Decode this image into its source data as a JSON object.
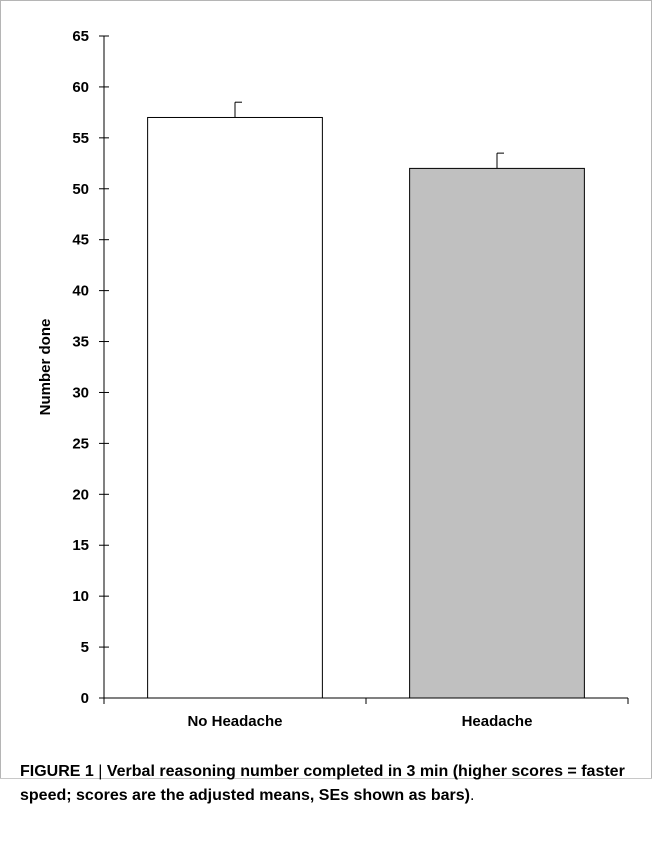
{
  "chart_data": {
    "type": "bar",
    "categories": [
      "No Headache",
      "Headache"
    ],
    "values": [
      57,
      52
    ],
    "error_upper": [
      58.5,
      53.5
    ],
    "bar_colors": [
      "#ffffff",
      "#c0c0c0"
    ],
    "ylabel": "Number done",
    "ylim": [
      0,
      65
    ],
    "yticks": [
      0,
      5,
      10,
      15,
      20,
      25,
      30,
      35,
      40,
      45,
      50,
      55,
      60,
      65
    ],
    "grid": false
  },
  "caption": {
    "label": "FIGURE 1",
    "separator": "|",
    "text": "Verbal reasoning number completed in 3 min (higher scores = faster speed; scores are the adjusted means, SEs shown as bars)",
    "end": "."
  }
}
